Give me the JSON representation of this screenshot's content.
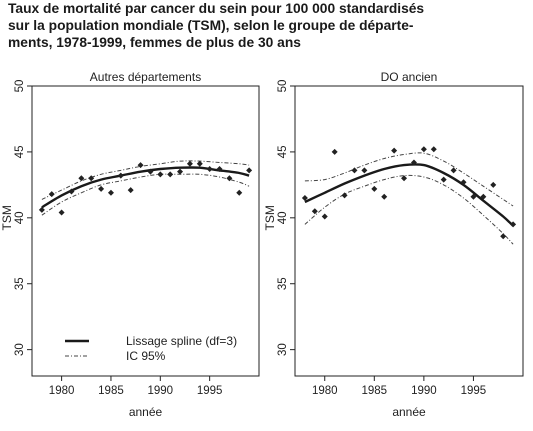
{
  "title_lines": [
    "Taux de mortalité par cancer du sein pour 100 000 standardisés",
    "sur la population mondiale (TSM), selon le groupe de départe-",
    "ments, 1978-1999, femmes de plus de 30 ans"
  ],
  "colors": {
    "curve": "#1a1a1a",
    "ci": "#444444",
    "points": "#222222",
    "axis": "#222222"
  },
  "chart_data": [
    {
      "type": "scatter",
      "title": "Autres départements",
      "xlabel": "année",
      "ylabel": "TSM",
      "xlim": [
        1977,
        2000
      ],
      "ylim": [
        28,
        50
      ],
      "xticks": [
        1980,
        1985,
        1990,
        1995
      ],
      "yticks": [
        30,
        35,
        40,
        45,
        50
      ],
      "points": [
        [
          1978,
          40.6
        ],
        [
          1979,
          41.8
        ],
        [
          1980,
          40.4
        ],
        [
          1981,
          42.0
        ],
        [
          1982,
          43.0
        ],
        [
          1983,
          43.0
        ],
        [
          1984,
          42.2
        ],
        [
          1985,
          41.9
        ],
        [
          1986,
          43.2
        ],
        [
          1987,
          42.1
        ],
        [
          1988,
          44.0
        ],
        [
          1989,
          43.5
        ],
        [
          1990,
          43.3
        ],
        [
          1991,
          43.3
        ],
        [
          1992,
          43.5
        ],
        [
          1993,
          44.1
        ],
        [
          1994,
          44.1
        ],
        [
          1995,
          43.7
        ],
        [
          1996,
          43.7
        ],
        [
          1997,
          43.0
        ],
        [
          1998,
          41.9
        ],
        [
          1999,
          43.6
        ]
      ],
      "fit": [
        [
          1978,
          40.8
        ],
        [
          1980,
          41.7
        ],
        [
          1982,
          42.4
        ],
        [
          1984,
          42.9
        ],
        [
          1986,
          43.2
        ],
        [
          1988,
          43.5
        ],
        [
          1990,
          43.7
        ],
        [
          1992,
          43.8
        ],
        [
          1994,
          43.8
        ],
        [
          1996,
          43.6
        ],
        [
          1998,
          43.4
        ],
        [
          1999,
          43.2
        ]
      ],
      "ci_upper": [
        [
          1978,
          41.4
        ],
        [
          1980,
          42.1
        ],
        [
          1982,
          42.8
        ],
        [
          1984,
          43.3
        ],
        [
          1986,
          43.6
        ],
        [
          1988,
          43.9
        ],
        [
          1990,
          44.1
        ],
        [
          1992,
          44.3
        ],
        [
          1994,
          44.3
        ],
        [
          1996,
          44.2
        ],
        [
          1998,
          44.1
        ],
        [
          1999,
          44.0
        ]
      ],
      "ci_lower": [
        [
          1978,
          40.2
        ],
        [
          1980,
          41.2
        ],
        [
          1982,
          41.9
        ],
        [
          1984,
          42.5
        ],
        [
          1986,
          42.8
        ],
        [
          1988,
          43.1
        ],
        [
          1990,
          43.3
        ],
        [
          1992,
          43.3
        ],
        [
          1994,
          43.3
        ],
        [
          1996,
          43.1
        ],
        [
          1998,
          42.7
        ],
        [
          1999,
          42.4
        ]
      ],
      "legend": [
        {
          "label": "Lissage spline (df=3)",
          "style": "solid"
        },
        {
          "label": "IC 95%",
          "style": "dashed"
        }
      ]
    },
    {
      "type": "scatter",
      "title": "DO ancien",
      "xlabel": "année",
      "ylabel": "TSM",
      "xlim": [
        1977,
        2000
      ],
      "ylim": [
        28,
        50
      ],
      "xticks": [
        1980,
        1985,
        1990,
        1995
      ],
      "yticks": [
        30,
        35,
        40,
        45,
        50
      ],
      "points": [
        [
          1978,
          41.5
        ],
        [
          1979,
          40.5
        ],
        [
          1980,
          40.1
        ],
        [
          1981,
          45.0
        ],
        [
          1982,
          41.7
        ],
        [
          1983,
          43.6
        ],
        [
          1984,
          43.6
        ],
        [
          1985,
          42.2
        ],
        [
          1986,
          41.6
        ],
        [
          1987,
          45.1
        ],
        [
          1988,
          43.0
        ],
        [
          1989,
          44.2
        ],
        [
          1990,
          45.2
        ],
        [
          1991,
          45.2
        ],
        [
          1992,
          42.9
        ],
        [
          1993,
          43.6
        ],
        [
          1994,
          42.7
        ],
        [
          1995,
          41.6
        ],
        [
          1996,
          41.6
        ],
        [
          1997,
          42.5
        ],
        [
          1998,
          38.6
        ],
        [
          1999,
          39.5
        ]
      ],
      "fit": [
        [
          1978,
          41.2
        ],
        [
          1980,
          41.9
        ],
        [
          1982,
          42.6
        ],
        [
          1984,
          43.2
        ],
        [
          1986,
          43.7
        ],
        [
          1988,
          44.0
        ],
        [
          1990,
          44.0
        ],
        [
          1992,
          43.4
        ],
        [
          1994,
          42.5
        ],
        [
          1996,
          41.3
        ],
        [
          1998,
          40.1
        ],
        [
          1999,
          39.4
        ]
      ],
      "ci_upper": [
        [
          1978,
          42.8
        ],
        [
          1980,
          42.9
        ],
        [
          1982,
          43.4
        ],
        [
          1984,
          44.0
        ],
        [
          1986,
          44.5
        ],
        [
          1988,
          44.8
        ],
        [
          1990,
          44.9
        ],
        [
          1992,
          44.3
        ],
        [
          1994,
          43.4
        ],
        [
          1996,
          42.4
        ],
        [
          1998,
          41.4
        ],
        [
          1999,
          40.9
        ]
      ],
      "ci_lower": [
        [
          1978,
          39.5
        ],
        [
          1980,
          40.8
        ],
        [
          1982,
          41.8
        ],
        [
          1984,
          42.4
        ],
        [
          1986,
          42.9
        ],
        [
          1988,
          43.2
        ],
        [
          1990,
          43.1
        ],
        [
          1992,
          42.5
        ],
        [
          1994,
          41.5
        ],
        [
          1996,
          40.2
        ],
        [
          1998,
          38.8
        ],
        [
          1999,
          38.0
        ]
      ]
    }
  ]
}
